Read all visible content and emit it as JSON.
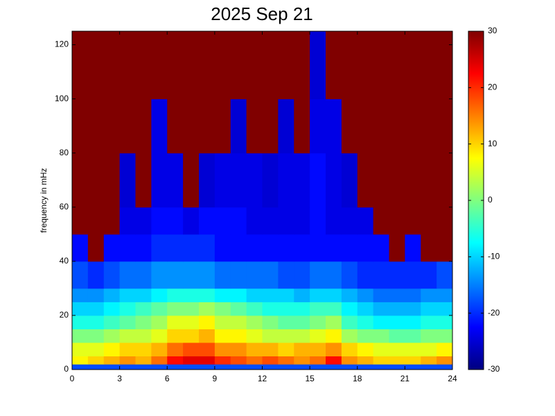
{
  "chart_data": {
    "type": "heatmap",
    "title": "2025 Sep 21",
    "y_label": "frequency in mHz",
    "colormap": "jet",
    "xlim": [
      0,
      24
    ],
    "xticks": [
      0,
      3,
      6,
      9,
      12,
      15,
      18,
      21,
      24
    ],
    "ylim": [
      0,
      125
    ],
    "yticks": [
      0,
      20,
      40,
      60,
      80,
      100,
      120
    ],
    "x_bins": [
      0,
      1,
      2,
      3,
      4,
      5,
      6,
      7,
      8,
      9,
      10,
      11,
      12,
      13,
      14,
      15,
      16,
      17,
      18,
      19,
      20,
      21,
      22,
      23,
      24
    ],
    "y_bins": [
      0,
      2,
      5,
      10,
      15,
      20,
      25,
      30,
      40,
      50,
      60,
      80,
      100,
      125
    ],
    "z": [
      [
        -18,
        -18,
        -18,
        -18,
        -18,
        -18,
        -18,
        -18,
        -18,
        -18,
        -18,
        -18,
        -18,
        -18,
        -18,
        -18,
        -18,
        -18,
        -18,
        -18,
        -18,
        -18,
        -18,
        -18
      ],
      [
        8,
        10,
        12,
        14,
        12,
        16,
        22,
        24,
        24,
        20,
        18,
        16,
        18,
        16,
        14,
        16,
        22,
        14,
        12,
        10,
        10,
        10,
        12,
        14
      ],
      [
        6,
        6,
        8,
        10,
        10,
        12,
        16,
        18,
        18,
        14,
        14,
        12,
        12,
        10,
        12,
        12,
        14,
        10,
        8,
        6,
        6,
        6,
        6,
        8
      ],
      [
        0,
        0,
        2,
        4,
        4,
        6,
        10,
        10,
        12,
        8,
        8,
        6,
        4,
        4,
        4,
        6,
        8,
        2,
        0,
        0,
        -2,
        -2,
        0,
        0
      ],
      [
        -6,
        -6,
        -4,
        -2,
        0,
        2,
        6,
        6,
        8,
        4,
        4,
        2,
        0,
        -2,
        -2,
        0,
        2,
        -4,
        -6,
        -8,
        -8,
        -8,
        -6,
        -6
      ],
      [
        -10,
        -10,
        -8,
        -6,
        -4,
        -2,
        0,
        0,
        2,
        0,
        -2,
        -4,
        -6,
        -6,
        -6,
        -4,
        -4,
        -8,
        -10,
        -12,
        -12,
        -12,
        -10,
        -10
      ],
      [
        -14,
        -14,
        -12,
        -10,
        -10,
        -8,
        -6,
        -6,
        -6,
        -8,
        -8,
        -10,
        -10,
        -10,
        -12,
        -10,
        -10,
        -12,
        -14,
        -16,
        -16,
        -16,
        -14,
        -14
      ],
      [
        -18,
        -20,
        -18,
        -16,
        -16,
        -14,
        -14,
        -14,
        -14,
        -16,
        -16,
        -16,
        -16,
        -18,
        -18,
        -16,
        -16,
        -18,
        -20,
        -20,
        -20,
        -20,
        -20,
        -18
      ],
      [
        -22,
        30,
        -22,
        -22,
        -22,
        -20,
        -20,
        -20,
        -20,
        -22,
        -22,
        -22,
        -22,
        -22,
        -22,
        -22,
        -22,
        -22,
        -22,
        -22,
        30,
        -22,
        30,
        30
      ],
      [
        30,
        30,
        30,
        -24,
        -24,
        -22,
        -22,
        -24,
        -22,
        -22,
        -22,
        -24,
        -24,
        -24,
        -24,
        -22,
        -24,
        -24,
        -24,
        30,
        30,
        30,
        30,
        30
      ],
      [
        30,
        30,
        30,
        -25,
        30,
        -24,
        -24,
        30,
        -25,
        -24,
        -24,
        -24,
        -25,
        -24,
        -24,
        -22,
        -24,
        -25,
        30,
        30,
        30,
        30,
        30,
        30
      ],
      [
        30,
        30,
        30,
        30,
        30,
        -24,
        30,
        30,
        30,
        30,
        -25,
        30,
        30,
        -25,
        30,
        -24,
        -24,
        30,
        30,
        30,
        30,
        30,
        30,
        30
      ],
      [
        30,
        30,
        30,
        30,
        30,
        30,
        30,
        30,
        30,
        30,
        30,
        30,
        30,
        30,
        30,
        -25,
        30,
        30,
        30,
        30,
        30,
        30,
        30,
        30
      ]
    ],
    "colorbar": {
      "clim": [
        -30,
        30
      ],
      "ticks": [
        -30,
        -20,
        -10,
        0,
        10,
        20,
        30
      ]
    }
  }
}
